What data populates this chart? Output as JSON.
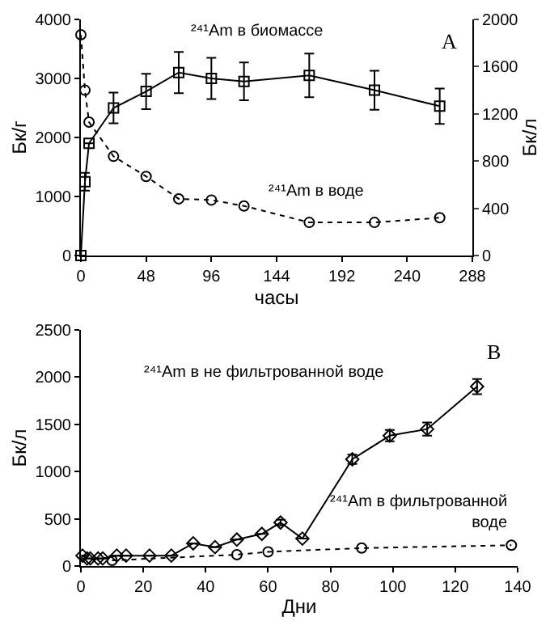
{
  "chart_data": [
    {
      "type": "line",
      "xlabel": "часы",
      "ylabel": "Бк/г",
      "y2label": "Бк/л",
      "annotations": [
        "А"
      ],
      "xlim": [
        0,
        288
      ],
      "xticks": [
        0,
        48,
        96,
        144,
        192,
        240,
        288
      ],
      "ylim": [
        0,
        4000
      ],
      "yticks": [
        0,
        1000,
        2000,
        3000,
        4000
      ],
      "y2lim": [
        0,
        2000
      ],
      "y2ticks": [
        0,
        400,
        800,
        1200,
        1600,
        2000
      ],
      "grid": false,
      "legend": false,
      "series": [
        {
          "name": "²⁴¹Am в биомассе",
          "color": "#000000",
          "marker": "square",
          "line_style": "solid",
          "x": [
            0,
            3,
            6,
            24,
            48,
            72,
            96,
            120,
            168,
            216,
            264
          ],
          "values": [
            0,
            1250,
            1900,
            2500,
            2780,
            3100,
            3000,
            2950,
            3050,
            2800,
            2530
          ],
          "errors": [
            null,
            150,
            null,
            260,
            300,
            350,
            350,
            320,
            370,
            330,
            300
          ]
        },
        {
          "name": "²⁴¹Am в воде",
          "color": "#000000",
          "marker": "circle",
          "line_style": "dotted",
          "axis": "y2",
          "x": [
            0,
            3,
            6,
            24,
            48,
            72,
            96,
            120,
            168,
            216,
            264
          ],
          "values": [
            1870,
            1400,
            1130,
            840,
            670,
            480,
            470,
            420,
            280,
            280,
            320
          ]
        }
      ]
    },
    {
      "type": "line",
      "xlabel": "Дни",
      "ylabel": "Бк/л",
      "annotations": [
        "В"
      ],
      "xlim": [
        0,
        140
      ],
      "xticks": [
        0,
        20,
        40,
        60,
        80,
        100,
        120,
        140
      ],
      "ylim": [
        0,
        2500
      ],
      "yticks": [
        0,
        500,
        1000,
        1500,
        2000,
        2500
      ],
      "grid": false,
      "legend": false,
      "series": [
        {
          "name": "²⁴¹Am в не фильтрованной воде",
          "color": "#000000",
          "marker": "diamond",
          "line_style": "solid",
          "x": [
            0.5,
            2,
            3,
            5.5,
            7,
            11.5,
            14.5,
            22,
            29,
            36,
            43,
            50,
            58,
            64,
            71,
            87,
            99,
            111,
            127
          ],
          "values": [
            110,
            80,
            80,
            80,
            80,
            110,
            110,
            110,
            110,
            240,
            200,
            280,
            340,
            460,
            290,
            1130,
            1380,
            1450,
            1900
          ],
          "errors": [
            null,
            null,
            null,
            null,
            null,
            null,
            null,
            null,
            null,
            null,
            null,
            null,
            null,
            30,
            null,
            50,
            60,
            70,
            80
          ]
        },
        {
          "name": "²⁴¹Am в фильтрованной воде",
          "color": "#000000",
          "marker": "circle",
          "line_style": "dotted",
          "x": [
            10,
            50,
            60,
            90,
            138
          ],
          "values": [
            60,
            120,
            150,
            190,
            220
          ]
        }
      ]
    }
  ]
}
